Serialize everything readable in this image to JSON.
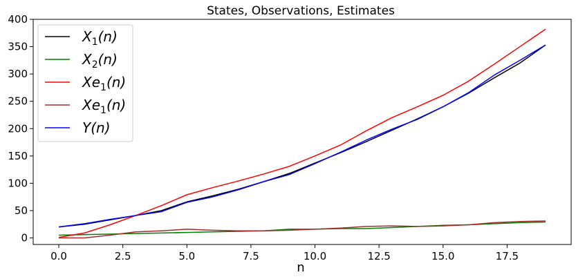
{
  "chart_data": {
    "type": "line",
    "title": "States, Observations, Estimates",
    "xlabel": "n",
    "ylabel": "",
    "xlim": [
      -1,
      20
    ],
    "ylim": [
      -12,
      400
    ],
    "xticks": [
      0.0,
      2.5,
      5.0,
      7.5,
      10.0,
      12.5,
      15.0,
      17.5
    ],
    "xtick_labels": [
      "0.0",
      "2.5",
      "5.0",
      "7.5",
      "10.0",
      "12.5",
      "15.0",
      "17.5"
    ],
    "yticks": [
      0,
      50,
      100,
      150,
      200,
      250,
      300,
      350,
      400
    ],
    "ytick_labels": [
      "0",
      "50",
      "100",
      "150",
      "200",
      "250",
      "300",
      "350",
      "400"
    ],
    "legend_position": "top-left",
    "x": [
      0,
      1,
      2,
      3,
      4,
      5,
      6,
      7,
      8,
      9,
      10,
      11,
      12,
      13,
      14,
      15,
      16,
      17,
      18,
      19
    ],
    "series": [
      {
        "name": "X1(n)",
        "label_base": "X",
        "label_sub": "1",
        "label_tail": "(n)",
        "color": "#000000",
        "values": [
          20,
          25,
          33,
          41,
          50,
          66,
          77,
          89,
          103,
          118,
          137,
          156,
          176,
          197,
          218,
          240,
          265,
          293,
          320,
          353
        ]
      },
      {
        "name": "X2(n)",
        "label_base": "X",
        "label_sub": "2",
        "label_tail": "(n)",
        "color": "#008000",
        "values": [
          5,
          6,
          7,
          8,
          9,
          10,
          11,
          12,
          13,
          16,
          16,
          17,
          17,
          19,
          21,
          23,
          24,
          26,
          28,
          29
        ]
      },
      {
        "name": "Xe1(n)",
        "label_base": "Xe",
        "label_sub": "1",
        "label_tail": "(n)",
        "color": "#ff0000",
        "values": [
          1,
          9,
          24,
          41,
          59,
          79,
          92,
          104,
          117,
          131,
          150,
          170,
          196,
          220,
          240,
          261,
          287,
          318,
          350,
          382
        ]
      },
      {
        "name": "Xe1(n)",
        "label_base": "Xe",
        "label_sub": "1",
        "label_tail": "(n)",
        "color": "#a52a2a",
        "values": [
          0,
          0,
          5,
          11,
          13,
          16,
          14,
          13,
          13,
          14,
          16,
          18,
          21,
          22,
          21,
          22,
          24,
          28,
          30,
          31
        ]
      },
      {
        "name": "Y(n)",
        "label_base": "Y",
        "label_sub": "",
        "label_tail": "(n)",
        "color": "#0000ff",
        "values": [
          20,
          26,
          34,
          41,
          48,
          65,
          75,
          88,
          103,
          116,
          136,
          157,
          179,
          199,
          217,
          240,
          266,
          298,
          325,
          353
        ]
      }
    ]
  }
}
